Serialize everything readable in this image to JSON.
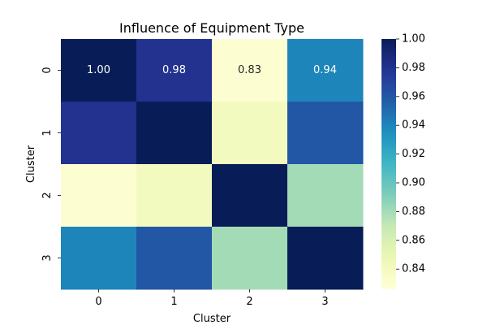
{
  "chart_data": {
    "type": "heatmap",
    "title": "Influence of Equipment Type",
    "xlabel": "Cluster",
    "ylabel": "Cluster",
    "x_categories": [
      "0",
      "1",
      "2",
      "3"
    ],
    "y_categories": [
      "0",
      "1",
      "2",
      "3"
    ],
    "values": [
      [
        1.0,
        0.98,
        0.83,
        0.94
      ],
      [
        0.98,
        1.0,
        0.84,
        0.96
      ],
      [
        0.83,
        0.84,
        1.0,
        0.88
      ],
      [
        0.94,
        0.96,
        0.88,
        1.0
      ]
    ],
    "annotations": [
      [
        "1.00",
        "0.98",
        "0.83",
        "0.94"
      ],
      [
        null,
        null,
        null,
        null
      ],
      [
        null,
        null,
        null,
        null
      ],
      [
        null,
        null,
        null,
        null
      ]
    ],
    "colormap": "YlGnBu",
    "vmin": 0.826,
    "vmax": 1.0,
    "colorbar_ticks": [
      0.84,
      0.86,
      0.88,
      0.9,
      0.92,
      0.94,
      0.96,
      0.98,
      1.0
    ],
    "colorbar_tick_labels": [
      "0.84",
      "0.86",
      "0.88",
      "0.90",
      "0.92",
      "0.94",
      "0.96",
      "0.98",
      "1.00"
    ],
    "annotation_colors": {
      "dark": "#ffffff",
      "light": "#262626"
    }
  }
}
